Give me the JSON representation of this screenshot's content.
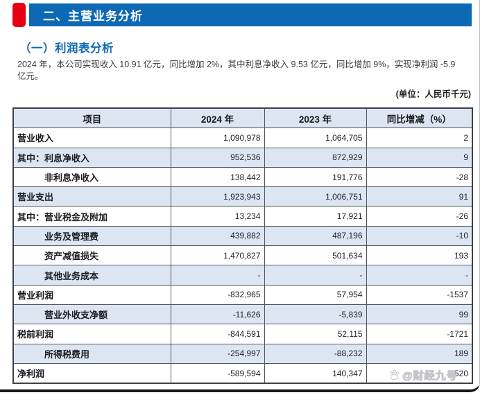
{
  "page": {
    "section_title": "二、主营业务分析",
    "subsection_title": "（一）利润表分析",
    "summary": "2024 年，本公司实现收入 10.91 亿元，同比增加 2%，其中利息净收入 9.53 亿元，同比增加 9%，实现净利润 -5.9 亿元。",
    "unit_label": "(单位：人民币千元)"
  },
  "colors": {
    "accent_blue": "#0d69b3",
    "accent_red": "#e60012",
    "row_alt_blue": "#dbe6f2",
    "table_border": "#52525c"
  },
  "watermark": {
    "icon": "paw-icon",
    "text": "@财经九号"
  },
  "table": {
    "columns": [
      "项目",
      "2024 年",
      "2023 年",
      "同比增减（%）"
    ],
    "rows": [
      {
        "label": "营业收入",
        "indent": false,
        "y2024": "1,090,978",
        "y2023": "1,064,705",
        "yoy": "2"
      },
      {
        "label": "其中：利息净收入",
        "indent": false,
        "y2024": "952,536",
        "y2023": "872,929",
        "yoy": "9"
      },
      {
        "label": "非利息净收入",
        "indent": true,
        "y2024": "138,442",
        "y2023": "191,776",
        "yoy": "-28"
      },
      {
        "label": "营业支出",
        "indent": false,
        "y2024": "1,923,943",
        "y2023": "1,006,751",
        "yoy": "91"
      },
      {
        "label": "其中：营业税金及附加",
        "indent": false,
        "y2024": "13,234",
        "y2023": "17,921",
        "yoy": "-26"
      },
      {
        "label": "业务及管理费",
        "indent": true,
        "y2024": "439,882",
        "y2023": "487,196",
        "yoy": "-10"
      },
      {
        "label": "资产减值损失",
        "indent": true,
        "y2024": "1,470,827",
        "y2023": "501,634",
        "yoy": "193"
      },
      {
        "label": "其他业务成本",
        "indent": true,
        "y2024": "-",
        "y2023": "-",
        "yoy": "-"
      },
      {
        "label": "营业利润",
        "indent": false,
        "y2024": "-832,965",
        "y2023": "57,954",
        "yoy": "-1537"
      },
      {
        "label": "营业外收支净额",
        "indent": true,
        "y2024": "-11,626",
        "y2023": "-5,839",
        "yoy": "99"
      },
      {
        "label": "税前利润",
        "indent": false,
        "y2024": "-844,591",
        "y2023": "52,115",
        "yoy": "-1721"
      },
      {
        "label": "所得税费用",
        "indent": true,
        "y2024": "-254,997",
        "y2023": "-88,232",
        "yoy": "189"
      },
      {
        "label": "净利润",
        "indent": false,
        "y2024": "-589,594",
        "y2023": "140,347",
        "yoy": "-520"
      }
    ]
  }
}
